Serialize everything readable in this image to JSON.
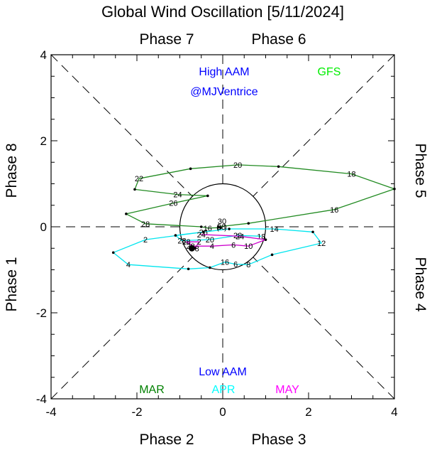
{
  "chart_data": {
    "type": "line",
    "title": "Global Wind Oscillation [5/11/2024]",
    "phases": {
      "top_left": "Phase 7",
      "top_right": "Phase 6",
      "bottom_left": "Phase 2",
      "bottom_right": "Phase 3",
      "left_upper": "Phase 8",
      "left_lower": "Phase 1",
      "right_upper": "Phase 5",
      "right_lower": "Phase 4"
    },
    "xlim": [
      -4,
      4
    ],
    "ylim": [
      -4,
      4
    ],
    "x_ticks": [
      -4,
      -2,
      0,
      2,
      4
    ],
    "y_ticks": [
      -4,
      -2,
      0,
      2,
      4
    ],
    "x_tick_labels": [
      "-4",
      "-2",
      "0",
      "2",
      "4"
    ],
    "y_tick_labels": [
      "-4",
      "-2",
      "0",
      "2",
      "4"
    ],
    "annotations": {
      "high_aam": "High AAM",
      "handle": "@MJVentrice",
      "low_aam": "Low AAM",
      "model": "GFS"
    },
    "colors": {
      "high_aam": "#0000ff",
      "handle": "#0000ff",
      "low_aam": "#0000ff",
      "model": "#00ee00"
    },
    "legend": [
      {
        "name": "MAR",
        "color": "#008000"
      },
      {
        "name": "APR",
        "color": "#00ffff"
      },
      {
        "name": "MAY",
        "color": "#ff00ff"
      }
    ],
    "series": [
      {
        "name": "MAR",
        "color": "#228b22",
        "points": [
          {
            "x": -0.1,
            "y": 0.0,
            "label": ""
          },
          {
            "x": 0.6,
            "y": 0.08,
            "label": ""
          },
          {
            "x": 2.6,
            "y": 0.4,
            "label": "16"
          },
          {
            "x": 4.0,
            "y": 0.88,
            "label": ""
          },
          {
            "x": 3.0,
            "y": 1.23,
            "label": "18"
          },
          {
            "x": 1.3,
            "y": 1.4,
            "label": ""
          },
          {
            "x": 0.35,
            "y": 1.44,
            "label": "20"
          },
          {
            "x": -0.75,
            "y": 1.35,
            "label": ""
          },
          {
            "x": -1.95,
            "y": 1.12,
            "label": "22"
          },
          {
            "x": -2.05,
            "y": 0.87,
            "label": ""
          },
          {
            "x": -1.05,
            "y": 0.75,
            "label": "24"
          },
          {
            "x": -0.35,
            "y": 0.72,
            "label": ""
          },
          {
            "x": -1.15,
            "y": 0.55,
            "label": "26"
          },
          {
            "x": -2.25,
            "y": 0.3,
            "label": ""
          },
          {
            "x": -1.8,
            "y": 0.07,
            "label": "28"
          },
          {
            "x": -0.5,
            "y": 0.0,
            "label": ""
          },
          {
            "x": -0.35,
            "y": -0.03,
            "label": "16"
          },
          {
            "x": -0.05,
            "y": -0.02,
            "label": ""
          }
        ]
      },
      {
        "name": "APR",
        "color": "#00e5ee",
        "points": [
          {
            "x": -0.45,
            "y": -0.12,
            "label": ""
          },
          {
            "x": -1.8,
            "y": -0.3,
            "label": "2"
          },
          {
            "x": -2.55,
            "y": -0.6,
            "label": ""
          },
          {
            "x": -2.2,
            "y": -0.88,
            "label": "4"
          },
          {
            "x": -0.8,
            "y": -0.98,
            "label": ""
          },
          {
            "x": -0.3,
            "y": -0.95,
            "label": ""
          },
          {
            "x": 0.05,
            "y": -0.82,
            "label": "16"
          },
          {
            "x": 0.3,
            "y": -0.87,
            "label": "6"
          },
          {
            "x": 0.6,
            "y": -0.88,
            "label": "8"
          },
          {
            "x": 1.15,
            "y": -0.65,
            "label": ""
          },
          {
            "x": 2.3,
            "y": -0.38,
            "label": "12"
          },
          {
            "x": 2.1,
            "y": -0.12,
            "label": ""
          },
          {
            "x": 1.2,
            "y": -0.05,
            "label": "14"
          },
          {
            "x": 0.15,
            "y": -0.05,
            "label": ""
          },
          {
            "x": -0.45,
            "y": -0.12,
            "label": "26"
          },
          {
            "x": -1.1,
            "y": -0.2,
            "label": ""
          },
          {
            "x": -0.95,
            "y": -0.32,
            "label": "28"
          },
          {
            "x": -0.3,
            "y": -0.3,
            "label": "20"
          },
          {
            "x": 0.35,
            "y": -0.2,
            "label": "22"
          },
          {
            "x": 0.9,
            "y": -0.22,
            "label": "18"
          }
        ]
      },
      {
        "name": "MAY",
        "color": "#cc00cc",
        "points": [
          {
            "x": -0.5,
            "y": -0.18,
            "label": "24"
          },
          {
            "x": 0.4,
            "y": -0.22,
            "label": "24"
          },
          {
            "x": 1.0,
            "y": -0.3,
            "label": ""
          },
          {
            "x": 0.6,
            "y": -0.45,
            "label": "10"
          },
          {
            "x": 0.25,
            "y": -0.42,
            "label": "6"
          },
          {
            "x": -0.25,
            "y": -0.45,
            "label": "4"
          },
          {
            "x": -0.75,
            "y": -0.45,
            "label": "28"
          },
          {
            "x": -0.6,
            "y": -0.5,
            "label": "8"
          },
          {
            "x": -0.85,
            "y": -0.35,
            "label": "18"
          },
          {
            "x": -0.55,
            "y": -0.35,
            "label": "2"
          },
          {
            "x": -0.65,
            "y": -0.5,
            "label": ""
          }
        ]
      }
    ],
    "center_labels": [
      "(",
      "28",
      ")",
      "30"
    ],
    "final_point": {
      "x": -0.72,
      "y": -0.5
    },
    "unit_circle_radius": 1.0
  }
}
